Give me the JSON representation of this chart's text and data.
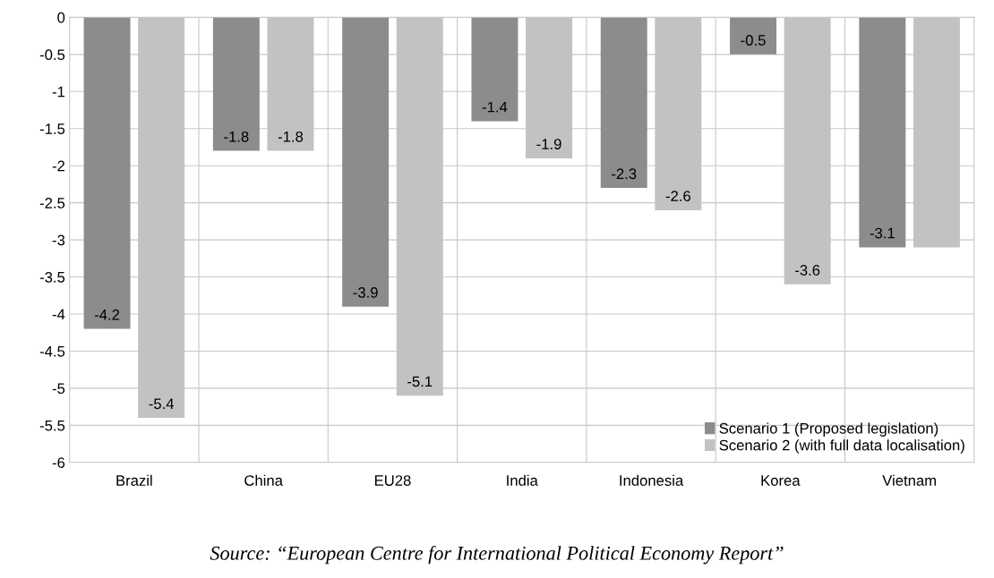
{
  "chart_data": {
    "type": "bar",
    "categories": [
      "Brazil",
      "China",
      "EU28",
      "India",
      "Indonesia",
      "Korea",
      "Vietnam"
    ],
    "series": [
      {
        "name": "Scenario 1 (Proposed legislation)",
        "color": "#8c8c8c",
        "values": [
          -4.2,
          -1.8,
          -3.9,
          -1.4,
          -2.3,
          -0.5,
          -3.1
        ],
        "value_labels": [
          "-4.2",
          "-1.8",
          "-3.9",
          "-1.4",
          "-2.3",
          "-0.5",
          "-3.1"
        ]
      },
      {
        "name": "Scenario 2 (with full data localisation)",
        "color": "#c3c1c1",
        "values": [
          -5.4,
          -1.8,
          -5.1,
          -1.9,
          -2.6,
          -3.6,
          -3.1
        ],
        "value_labels": [
          "-5.4",
          "-1.8",
          "-5.1",
          "-1.9",
          "-2.6",
          "-3.6",
          null
        ]
      }
    ],
    "ylim": [
      -6,
      0
    ],
    "yticks": [
      0,
      -0.5,
      -1,
      -1.5,
      -2,
      -2.5,
      -3,
      -3.5,
      -4,
      -4.5,
      -5,
      -5.5,
      -6
    ],
    "grid": true,
    "legend": "bottom right",
    "annotations": [
      "Source: “European Centre for International Political Economy Report”"
    ]
  }
}
